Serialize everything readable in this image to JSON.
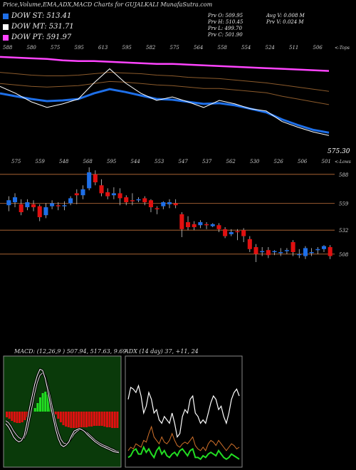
{
  "header": {
    "title": "Price,Volume,EMA,ADX,MACD Charts for GUJALKALI MunafaSutra.com"
  },
  "legend": [
    {
      "label": "DOW ST: 513.41",
      "color": "#1e6fe8"
    },
    {
      "label": "DOW MT: 531.71",
      "color": "#ffffff"
    },
    {
      "label": "DOW PT: 591.97",
      "color": "#ff44ff"
    }
  ],
  "stats": {
    "prv_o": "Prv  O: 509.95",
    "prv_h": "Prv  H: 510.45",
    "prv_l": "Prv  L: 499.70",
    "prv_c": "Prv  C: 501.90",
    "avg_v": "Avg V: 0.008  M",
    "prv_v": "Prv  V: 0.024  M"
  },
  "colors": {
    "up": "#1e6fe8",
    "down": "#e01010",
    "pt": "#ff44ff",
    "st": "#1e6fe8",
    "mt": "#ffffff",
    "ema_brown": "#8b5a2b",
    "grid": "#c0703a",
    "macd_bg": "#0a3a0a",
    "adx_green": "#22dd22",
    "adx_orange": "#d0702a"
  },
  "chart_data": [
    {
      "type": "line",
      "name": "ema-panel",
      "top_tick_labels": [
        "588",
        "580",
        "575",
        "595",
        "613",
        "595",
        "582",
        "575",
        "564",
        "558",
        "554",
        "524",
        "511",
        "506"
      ],
      "top_right_label": "<-Tops",
      "bottom_tick_labels": [
        "575",
        "559",
        "548",
        "568",
        "595",
        "544",
        "553",
        "547",
        "537",
        "562",
        "530",
        "526",
        "506",
        "501"
      ],
      "bottom_right_label": "<-Lows",
      "last_price_label": "575.30",
      "ylim": [
        480,
        620
      ],
      "series": [
        {
          "name": "DOW PT",
          "values": [
            612,
            611,
            610,
            609,
            607,
            606,
            606,
            605,
            604,
            603,
            602,
            602,
            601,
            600,
            599,
            598,
            597,
            596,
            595,
            594,
            593,
            592
          ]
        },
        {
          "name": "DOW MT",
          "values": [
            570,
            560,
            548,
            540,
            545,
            552,
            575,
            595,
            575,
            560,
            550,
            555,
            548,
            540,
            550,
            545,
            538,
            535,
            520,
            512,
            505,
            500
          ]
        },
        {
          "name": "DOW ST",
          "values": [
            560,
            556,
            552,
            549,
            550,
            552,
            560,
            566,
            562,
            557,
            552,
            551,
            548,
            545,
            546,
            543,
            538,
            533,
            523,
            515,
            508,
            504
          ]
        },
        {
          "name": "EMA",
          "values": [
            574,
            572,
            570,
            569,
            570,
            571,
            574,
            577,
            576,
            574,
            572,
            571,
            569,
            567,
            567,
            565,
            563,
            561,
            556,
            552,
            548,
            544
          ]
        },
        {
          "name": "EMA",
          "values": [
            590,
            588,
            586,
            585,
            585,
            586,
            588,
            590,
            589,
            588,
            586,
            585,
            583,
            582,
            581,
            579,
            577,
            575,
            572,
            569,
            566,
            563
          ]
        }
      ]
    },
    {
      "type": "candlestick",
      "name": "price-panel",
      "y_ticks": [
        "588",
        "559",
        "532",
        "508"
      ],
      "ylim": [
        495,
        595
      ],
      "candles": [
        {
          "o": 557,
          "c": 562,
          "h": 566,
          "l": 551
        },
        {
          "o": 560,
          "c": 565,
          "h": 569,
          "l": 555
        },
        {
          "o": 558,
          "c": 550,
          "h": 563,
          "l": 547
        },
        {
          "o": 555,
          "c": 560,
          "h": 563,
          "l": 552
        },
        {
          "o": 558,
          "c": 555,
          "h": 562,
          "l": 551
        },
        {
          "o": 556,
          "c": 545,
          "h": 558,
          "l": 541
        },
        {
          "o": 547,
          "c": 555,
          "h": 559,
          "l": 544
        },
        {
          "o": 556,
          "c": 559,
          "h": 562,
          "l": 553
        },
        {
          "o": 557,
          "c": 556,
          "h": 560,
          "l": 552
        },
        {
          "o": 556,
          "c": 557,
          "h": 561,
          "l": 552
        },
        {
          "o": 559,
          "c": 564,
          "h": 566,
          "l": 557
        },
        {
          "o": 569,
          "c": 567,
          "h": 573,
          "l": 558
        },
        {
          "o": 567,
          "c": 573,
          "h": 577,
          "l": 563
        },
        {
          "o": 574,
          "c": 590,
          "h": 595,
          "l": 572
        },
        {
          "o": 588,
          "c": 580,
          "h": 592,
          "l": 577
        },
        {
          "o": 577,
          "c": 569,
          "h": 583,
          "l": 566
        },
        {
          "o": 570,
          "c": 566,
          "h": 574,
          "l": 563
        },
        {
          "o": 567,
          "c": 569,
          "h": 575,
          "l": 563
        },
        {
          "o": 569,
          "c": 564,
          "h": 574,
          "l": 557
        },
        {
          "o": 565,
          "c": 560,
          "h": 567,
          "l": 557
        },
        {
          "o": 562,
          "c": 561,
          "h": 569,
          "l": 557
        },
        {
          "o": 563,
          "c": 563,
          "h": 565,
          "l": 560
        },
        {
          "o": 564,
          "c": 560,
          "h": 566,
          "l": 557
        },
        {
          "o": 562,
          "c": 555,
          "h": 563,
          "l": 550
        },
        {
          "o": 554,
          "c": 553,
          "h": 556,
          "l": 548
        },
        {
          "o": 556,
          "c": 560,
          "h": 561,
          "l": 553
        },
        {
          "o": 558,
          "c": 560,
          "h": 563,
          "l": 554
        },
        {
          "o": 559,
          "c": 557,
          "h": 563,
          "l": 554
        },
        {
          "o": 548,
          "c": 533,
          "h": 550,
          "l": 525
        },
        {
          "o": 540,
          "c": 535,
          "h": 546,
          "l": 532
        },
        {
          "o": 538,
          "c": 535,
          "h": 541,
          "l": 532
        },
        {
          "o": 537,
          "c": 540,
          "h": 542,
          "l": 534
        },
        {
          "o": 538,
          "c": 537,
          "h": 540,
          "l": 533
        },
        {
          "o": 536,
          "c": 538,
          "h": 539,
          "l": 535
        },
        {
          "o": 537,
          "c": 533,
          "h": 539,
          "l": 530
        },
        {
          "o": 533,
          "c": 526,
          "h": 535,
          "l": 524
        },
        {
          "o": 528,
          "c": 530,
          "h": 533,
          "l": 526
        },
        {
          "o": 531,
          "c": 530,
          "h": 533,
          "l": 522
        },
        {
          "o": 532,
          "c": 526,
          "h": 534,
          "l": 520
        },
        {
          "o": 523,
          "c": 513,
          "h": 526,
          "l": 510
        },
        {
          "o": 515,
          "c": 508,
          "h": 518,
          "l": 500
        },
        {
          "o": 510,
          "c": 511,
          "h": 515,
          "l": 506
        },
        {
          "o": 512,
          "c": 507,
          "h": 515,
          "l": 504
        },
        {
          "o": 510,
          "c": 511,
          "h": 512,
          "l": 507
        },
        {
          "o": 510,
          "c": 510,
          "h": 514,
          "l": 506
        },
        {
          "o": 512,
          "c": 512,
          "h": 514,
          "l": 508
        },
        {
          "o": 520,
          "c": 510,
          "h": 522,
          "l": 506
        },
        {
          "o": 507,
          "c": 508,
          "h": 513,
          "l": 504
        },
        {
          "o": 506,
          "c": 514,
          "h": 516,
          "l": 503
        },
        {
          "o": 509,
          "c": 510,
          "h": 514,
          "l": 506
        },
        {
          "o": 512,
          "c": 513,
          "h": 515,
          "l": 508
        },
        {
          "o": 513,
          "c": 516,
          "h": 517,
          "l": 510
        },
        {
          "o": 515,
          "c": 506,
          "h": 517,
          "l": 503
        }
      ]
    },
    {
      "type": "bar",
      "name": "macd-panel",
      "title": "MACD: (12,26,9 ) 507.94,  517.63,  9.69",
      "histogram": [
        -8,
        -10,
        -13,
        -15,
        -16,
        -16,
        -15,
        -12,
        -8,
        -4,
        0,
        5,
        12,
        20,
        26,
        28,
        24,
        14,
        4,
        -4,
        -10,
        -15,
        -19,
        -21,
        -22,
        -23,
        -23,
        -23,
        -23,
        -22,
        -22,
        -22,
        -21,
        -21,
        -20,
        -20,
        -20,
        -20,
        -21,
        -22,
        -22,
        -23,
        -23,
        -23
      ],
      "macd": [
        -20,
        -25,
        -33,
        -42,
        -47,
        -50,
        -48,
        -40,
        -20,
        5,
        25,
        45,
        60,
        70,
        68,
        55,
        35,
        10,
        -10,
        -30,
        -45,
        -55,
        -58,
        -55,
        -50,
        -40,
        -32,
        -30,
        -28,
        -30,
        -33,
        -38,
        -42,
        -46,
        -50,
        -53,
        -56,
        -58,
        -60,
        -62,
        -64,
        -66,
        -67,
        -68
      ],
      "signal": [
        -15,
        -18,
        -24,
        -32,
        -38,
        -43,
        -45,
        -44,
        -34,
        -14,
        8,
        30,
        48,
        60,
        64,
        58,
        42,
        22,
        2,
        -18,
        -34,
        -46,
        -52,
        -53,
        -50,
        -44,
        -37,
        -33,
        -30,
        -30,
        -32,
        -35,
        -39,
        -43,
        -47,
        -50,
        -53,
        -55,
        -57,
        -59,
        -61,
        -63,
        -65,
        -66
      ]
    },
    {
      "type": "line",
      "name": "adx-panel",
      "title": "ADX  (14 day) 37, +11,  24",
      "series": [
        {
          "name": "ADX",
          "values": [
            38,
            45,
            44,
            42,
            46,
            40,
            30,
            34,
            42,
            38,
            30,
            32,
            26,
            24,
            28,
            26,
            24,
            30,
            24,
            16,
            18,
            28,
            32,
            30,
            38,
            40,
            30,
            28,
            24,
            26,
            24,
            30,
            36,
            40,
            38,
            32,
            34,
            28,
            24,
            30,
            38,
            42,
            44,
            40
          ]
        },
        {
          "name": "+DI",
          "values": [
            4,
            5,
            8,
            9,
            6,
            6,
            10,
            7,
            9,
            6,
            4,
            8,
            10,
            6,
            8,
            5,
            4,
            6,
            7,
            5,
            8,
            9,
            7,
            5,
            8,
            9,
            4,
            4,
            3,
            5,
            4,
            6,
            7,
            6,
            5,
            8,
            6,
            4,
            3,
            4,
            6,
            5,
            4,
            3
          ]
        },
        {
          "name": "-DI",
          "values": [
            8,
            10,
            9,
            12,
            11,
            10,
            14,
            13,
            18,
            22,
            16,
            14,
            12,
            16,
            13,
            12,
            14,
            18,
            14,
            11,
            10,
            12,
            13,
            12,
            14,
            16,
            11,
            9,
            8,
            10,
            8,
            12,
            14,
            13,
            11,
            14,
            12,
            10,
            8,
            10,
            12,
            11,
            9,
            10
          ]
        }
      ]
    }
  ]
}
